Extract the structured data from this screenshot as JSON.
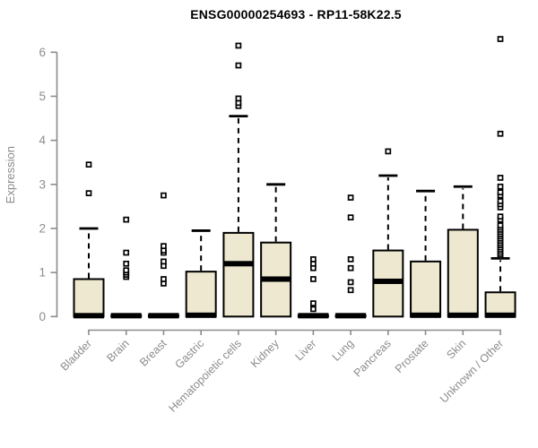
{
  "title": "ENSG00000254693 - RP11-58K22.5",
  "colors": {
    "box_fill": "#EDE8CF",
    "box_stroke": "#000000",
    "median": "#000000",
    "whisker": "#000000",
    "outlier_fill": "#FFFFFF",
    "outlier_stroke": "#000000",
    "axis": "#8C8C8C",
    "title_text": "#000000",
    "background": "#FFFFFF"
  },
  "chart_data": {
    "type": "boxplot",
    "title": "ENSG00000254693 - RP11-58K22.5",
    "xlabel": "",
    "ylabel": "Expression",
    "ylim": [
      0,
      6
    ],
    "yticks": [
      0,
      1,
      2,
      3,
      4,
      5,
      6
    ],
    "grid": false,
    "legend": "none",
    "categories": [
      "Bladder",
      "Brain",
      "Breast",
      "Gastric",
      "Hematopoietic cells",
      "Kidney",
      "Liver",
      "Lung",
      "Pancreas",
      "Prostate",
      "Skin",
      "Unknown / Other"
    ],
    "series": [
      {
        "name": "Bladder",
        "q1": 0,
        "median": 0.02,
        "q3": 0.85,
        "whisker_low": 0,
        "whisker_high": 2.0,
        "outliers": [
          2.8,
          3.45
        ]
      },
      {
        "name": "Brain",
        "q1": 0,
        "median": 0.02,
        "q3": 0.03,
        "whisker_low": 0,
        "whisker_high": 0.03,
        "outliers": [
          0.9,
          0.95,
          1.0,
          1.05,
          1.2,
          1.45,
          2.2
        ]
      },
      {
        "name": "Breast",
        "q1": 0,
        "median": 0.02,
        "q3": 0.03,
        "whisker_low": 0,
        "whisker_high": 0.03,
        "outliers": [
          0.75,
          0.85,
          1.15,
          1.25,
          1.45,
          1.5,
          1.6,
          2.75
        ]
      },
      {
        "name": "Gastric",
        "q1": 0,
        "median": 0.03,
        "q3": 1.02,
        "whisker_low": 0,
        "whisker_high": 1.95,
        "outliers": []
      },
      {
        "name": "Hematopoietic cells",
        "q1": 0,
        "median": 1.2,
        "q3": 1.9,
        "whisker_low": 0,
        "whisker_high": 4.55,
        "outliers": [
          4.78,
          4.85,
          4.95,
          5.7,
          6.15
        ]
      },
      {
        "name": "Kidney",
        "q1": 0,
        "median": 0.85,
        "q3": 1.68,
        "whisker_low": 0,
        "whisker_high": 3.0,
        "outliers": []
      },
      {
        "name": "Liver",
        "q1": 0,
        "median": 0.02,
        "q3": 0.03,
        "whisker_low": 0,
        "whisker_high": 0.03,
        "outliers": [
          0.17,
          0.3,
          0.85,
          1.1,
          1.2,
          1.3
        ]
      },
      {
        "name": "Lung",
        "q1": 0,
        "median": 0.02,
        "q3": 0.03,
        "whisker_low": 0,
        "whisker_high": 0.03,
        "outliers": [
          0.6,
          0.78,
          1.1,
          1.3,
          2.25,
          2.7
        ]
      },
      {
        "name": "Pancreas",
        "q1": 0,
        "median": 0.8,
        "q3": 1.5,
        "whisker_low": 0,
        "whisker_high": 3.2,
        "outliers": [
          3.75
        ]
      },
      {
        "name": "Prostate",
        "q1": 0,
        "median": 0.03,
        "q3": 1.25,
        "whisker_low": 0,
        "whisker_high": 2.85,
        "outliers": []
      },
      {
        "name": "Skin",
        "q1": 0,
        "median": 0.03,
        "q3": 1.97,
        "whisker_low": 0,
        "whisker_high": 2.95,
        "outliers": []
      },
      {
        "name": "Unknown / Other",
        "q1": 0,
        "median": 0.03,
        "q3": 0.55,
        "whisker_low": 0,
        "whisker_high": 1.32,
        "outliers": [
          1.38,
          1.42,
          1.47,
          1.52,
          1.57,
          1.62,
          1.67,
          1.72,
          1.77,
          1.82,
          1.87,
          1.92,
          1.97,
          2.02,
          2.07,
          2.2,
          2.27,
          2.48,
          2.55,
          2.62,
          2.75,
          2.82,
          2.95,
          3.15,
          4.15,
          6.3
        ]
      }
    ]
  }
}
